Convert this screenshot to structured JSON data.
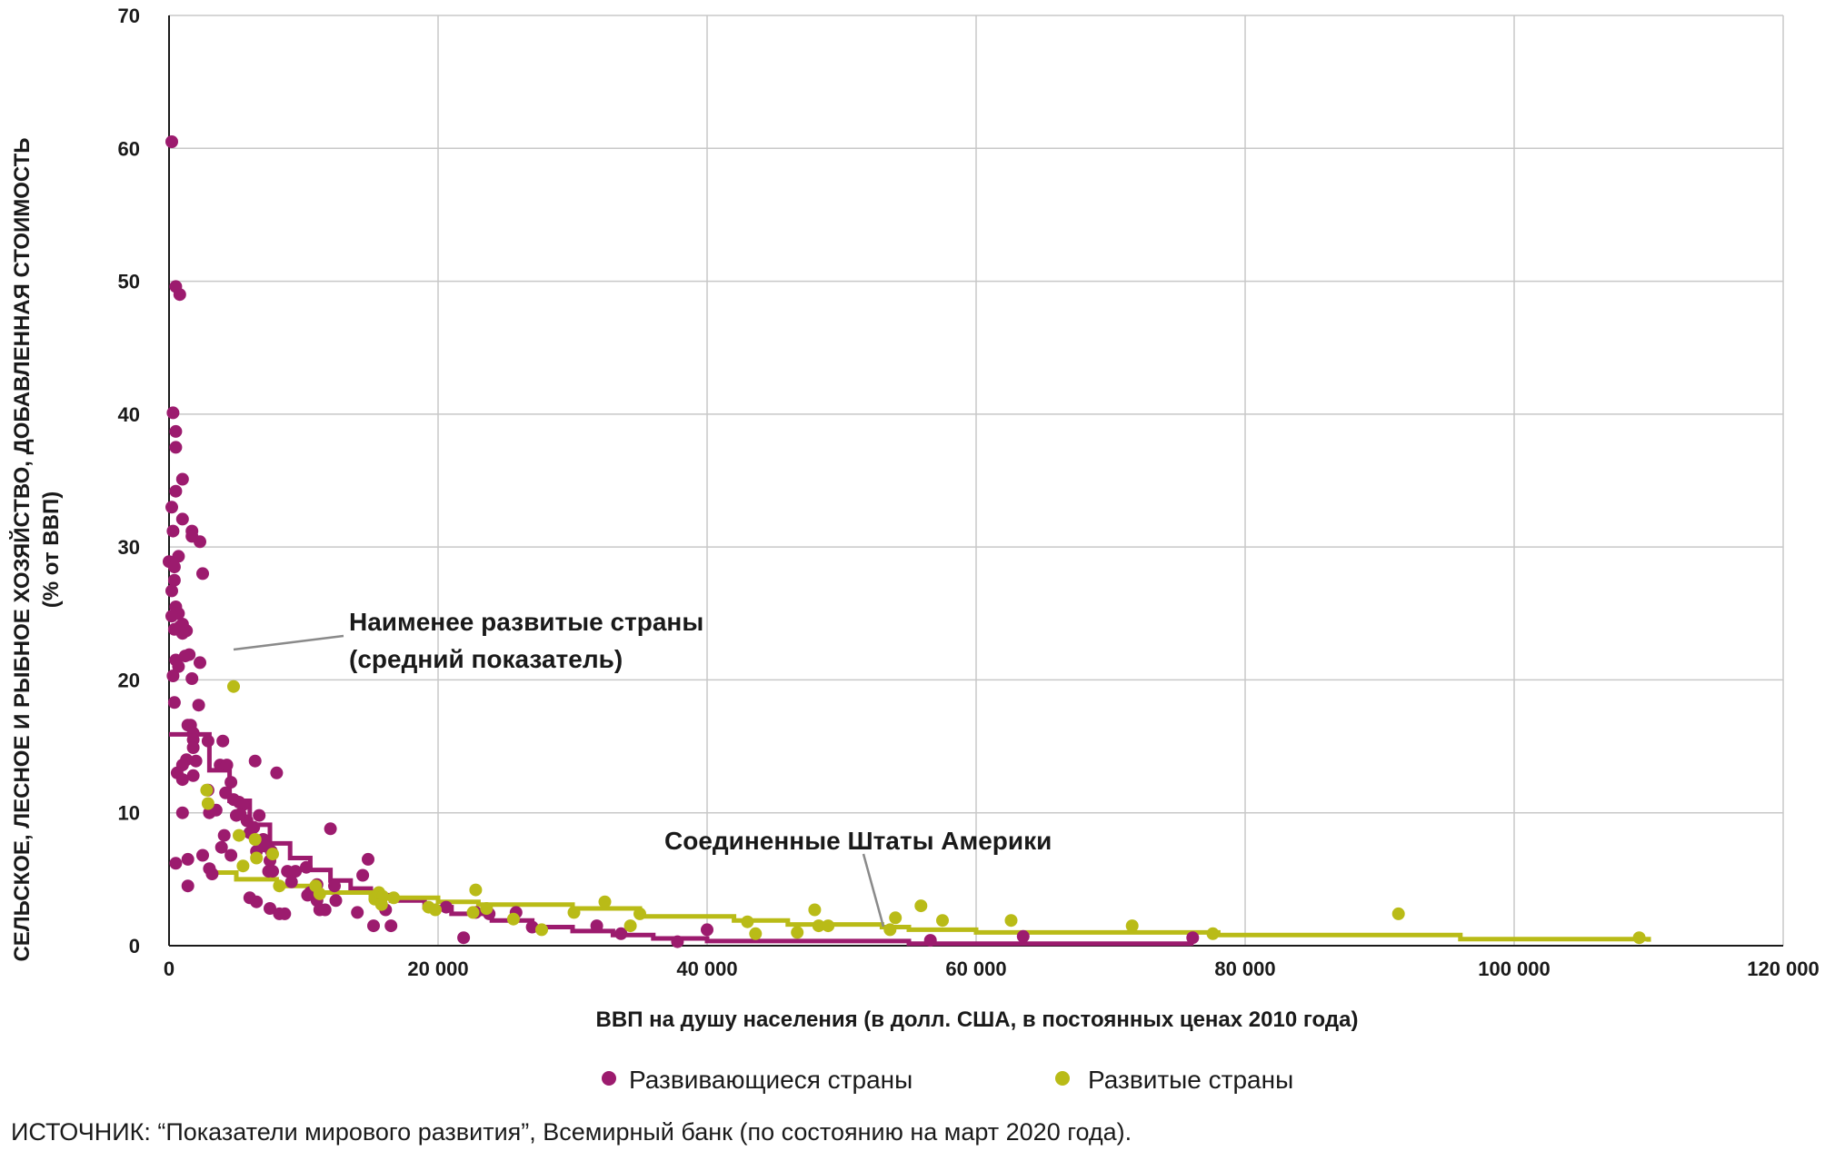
{
  "chart_data": {
    "type": "scatter",
    "xlabel": "ВВП на душу населения (в долл. США, в постоянных ценах 2010 года)",
    "ylabel_line1": "СЕЛЬСКОЕ, ЛЕСНОЕ И РЫБНОЕ ХОЗЯЙСТВО, ДОБАВЛЕННАЯ СТОИМОСТЬ",
    "ylabel_line2": "(% от ВВП)",
    "xlim": [
      0,
      120000
    ],
    "ylim": [
      0,
      70
    ],
    "x_ticks": [
      0,
      20000,
      40000,
      60000,
      80000,
      100000,
      120000
    ],
    "x_tick_labels": [
      "0",
      "20 000",
      "40 000",
      "60 000",
      "80 000",
      "100 000",
      "120 000"
    ],
    "y_ticks": [
      0,
      10,
      20,
      30,
      40,
      50,
      60,
      70
    ],
    "y_tick_labels": [
      "0",
      "10",
      "20",
      "30",
      "40",
      "50",
      "60",
      "70"
    ],
    "grid": true,
    "legend_position": "bottom",
    "series": [
      {
        "name": "Развивающиеся страны",
        "color": "#9c1b6e",
        "points": [
          [
            200,
            60.5
          ],
          [
            500,
            49.6
          ],
          [
            800,
            49.0
          ],
          [
            300,
            40.1
          ],
          [
            500,
            38.7
          ],
          [
            500,
            37.5
          ],
          [
            1000,
            35.1
          ],
          [
            500,
            34.2
          ],
          [
            200,
            33.0
          ],
          [
            1000,
            32.1
          ],
          [
            300,
            31.2
          ],
          [
            1700,
            31.2
          ],
          [
            2300,
            30.4
          ],
          [
            1700,
            30.8
          ],
          [
            700,
            29.3
          ],
          [
            0,
            28.9
          ],
          [
            400,
            28.5
          ],
          [
            2500,
            28.0
          ],
          [
            400,
            27.5
          ],
          [
            200,
            26.7
          ],
          [
            500,
            25.5
          ],
          [
            700,
            25.0
          ],
          [
            1000,
            24.2
          ],
          [
            200,
            24.8
          ],
          [
            800,
            24.0
          ],
          [
            1300,
            23.7
          ],
          [
            1000,
            23.5
          ],
          [
            400,
            23.8
          ],
          [
            1500,
            21.9
          ],
          [
            500,
            21.5
          ],
          [
            1200,
            21.8
          ],
          [
            2300,
            21.3
          ],
          [
            700,
            21.0
          ],
          [
            300,
            20.3
          ],
          [
            1700,
            20.1
          ],
          [
            400,
            18.3
          ],
          [
            2200,
            18.1
          ],
          [
            1600,
            16.6
          ],
          [
            1400,
            16.6
          ],
          [
            1800,
            16.0
          ],
          [
            1800,
            15.5
          ],
          [
            2900,
            15.4
          ],
          [
            4000,
            15.4
          ],
          [
            1800,
            14.9
          ],
          [
            1300,
            14.0
          ],
          [
            2000,
            13.9
          ],
          [
            1000,
            13.6
          ],
          [
            3800,
            13.6
          ],
          [
            4300,
            13.6
          ],
          [
            6400,
            13.9
          ],
          [
            8000,
            13.0
          ],
          [
            600,
            13.0
          ],
          [
            1800,
            12.8
          ],
          [
            4600,
            12.3
          ],
          [
            1000,
            12.5
          ],
          [
            2900,
            11.7
          ],
          [
            3000,
            10.0
          ],
          [
            3500,
            10.2
          ],
          [
            4200,
            11.5
          ],
          [
            4800,
            11.0
          ],
          [
            5200,
            10.8
          ],
          [
            5500,
            10.6
          ],
          [
            5000,
            9.8
          ],
          [
            6700,
            9.8
          ],
          [
            1000,
            10.0
          ],
          [
            12000,
            8.8
          ],
          [
            6000,
            8.5
          ],
          [
            7000,
            8.0
          ],
          [
            4100,
            8.3
          ],
          [
            3900,
            7.4
          ],
          [
            4600,
            6.8
          ],
          [
            6500,
            7.1
          ],
          [
            7600,
            7.1
          ],
          [
            5300,
            9.9
          ],
          [
            5800,
            9.4
          ],
          [
            6300,
            8.9
          ],
          [
            7100,
            7.5
          ],
          [
            7500,
            6.4
          ],
          [
            2500,
            6.8
          ],
          [
            1400,
            6.5
          ],
          [
            500,
            6.2
          ],
          [
            3000,
            5.8
          ],
          [
            3200,
            5.4
          ],
          [
            7400,
            5.6
          ],
          [
            7700,
            5.6
          ],
          [
            8800,
            5.6
          ],
          [
            9400,
            5.6
          ],
          [
            9100,
            4.8
          ],
          [
            10200,
            5.9
          ],
          [
            14800,
            6.5
          ],
          [
            14400,
            5.3
          ],
          [
            11000,
            4.6
          ],
          [
            12300,
            4.5
          ],
          [
            10500,
            4.0
          ],
          [
            10300,
            3.8
          ],
          [
            11000,
            3.4
          ],
          [
            12400,
            3.4
          ],
          [
            6000,
            3.6
          ],
          [
            6500,
            3.3
          ],
          [
            7500,
            2.8
          ],
          [
            8200,
            2.4
          ],
          [
            8600,
            2.4
          ],
          [
            11200,
            2.7
          ],
          [
            11600,
            2.7
          ],
          [
            14000,
            2.5
          ],
          [
            15200,
            1.5
          ],
          [
            16100,
            2.7
          ],
          [
            16500,
            1.5
          ],
          [
            20600,
            2.9
          ],
          [
            21900,
            0.6
          ],
          [
            22800,
            2.5
          ],
          [
            23800,
            2.4
          ],
          [
            25800,
            2.5
          ],
          [
            27000,
            1.4
          ],
          [
            31800,
            1.5
          ],
          [
            33600,
            0.9
          ],
          [
            37800,
            0.3
          ],
          [
            40000,
            1.2
          ],
          [
            56600,
            0.4
          ],
          [
            63500,
            0.7
          ],
          [
            76100,
            0.6
          ],
          [
            1400,
            4.5
          ]
        ],
        "average_line": [
          [
            0,
            15.9
          ],
          [
            3000,
            13.2
          ],
          [
            4500,
            10.9
          ],
          [
            6000,
            9.1
          ],
          [
            7500,
            7.7
          ],
          [
            9000,
            6.6
          ],
          [
            10500,
            5.7
          ],
          [
            12000,
            4.9
          ],
          [
            13500,
            4.3
          ],
          [
            15000,
            3.8
          ],
          [
            16500,
            3.4
          ],
          [
            19000,
            2.9
          ],
          [
            21000,
            2.4
          ],
          [
            24000,
            1.9
          ],
          [
            27000,
            1.4
          ],
          [
            30000,
            1.1
          ],
          [
            33000,
            0.8
          ],
          [
            36000,
            0.55
          ],
          [
            40000,
            0.35
          ],
          [
            55000,
            0.15
          ],
          [
            76000,
            0.0
          ]
        ]
      },
      {
        "name": "Развитые страны",
        "color": "#b9bb17",
        "points": [
          [
            4800,
            19.5
          ],
          [
            2800,
            11.7
          ],
          [
            2900,
            10.7
          ],
          [
            5200,
            8.3
          ],
          [
            6400,
            8.0
          ],
          [
            5500,
            6.0
          ],
          [
            6500,
            6.6
          ],
          [
            7700,
            6.9
          ],
          [
            8200,
            4.5
          ],
          [
            10900,
            4.5
          ],
          [
            11200,
            3.9
          ],
          [
            15300,
            3.5
          ],
          [
            15600,
            4.0
          ],
          [
            15900,
            3.7
          ],
          [
            15800,
            3.1
          ],
          [
            16700,
            3.6
          ],
          [
            19300,
            2.9
          ],
          [
            19800,
            2.7
          ],
          [
            22800,
            4.2
          ],
          [
            22600,
            2.5
          ],
          [
            23600,
            2.8
          ],
          [
            25600,
            2.0
          ],
          [
            27700,
            1.2
          ],
          [
            30100,
            2.5
          ],
          [
            32400,
            3.3
          ],
          [
            34300,
            1.5
          ],
          [
            35000,
            2.4
          ],
          [
            43000,
            1.8
          ],
          [
            43600,
            0.9
          ],
          [
            46700,
            1.0
          ],
          [
            48000,
            2.7
          ],
          [
            48300,
            1.5
          ],
          [
            49000,
            1.5
          ],
          [
            53600,
            1.2
          ],
          [
            54000,
            2.1
          ],
          [
            55900,
            3.0
          ],
          [
            57500,
            1.9
          ],
          [
            62600,
            1.9
          ],
          [
            71600,
            1.5
          ],
          [
            77600,
            0.9
          ],
          [
            91400,
            2.4
          ],
          [
            109300,
            0.6
          ]
        ],
        "average_line": [
          [
            3000,
            5.5
          ],
          [
            5000,
            5.0
          ],
          [
            8000,
            4.5
          ],
          [
            11000,
            4.0
          ],
          [
            15000,
            3.6
          ],
          [
            20000,
            3.3
          ],
          [
            23000,
            3.1
          ],
          [
            30000,
            2.8
          ],
          [
            35000,
            2.2
          ],
          [
            42000,
            1.9
          ],
          [
            46000,
            1.6
          ],
          [
            53000,
            1.4
          ],
          [
            55000,
            1.2
          ],
          [
            60000,
            1.0
          ],
          [
            78000,
            0.8
          ],
          [
            96000,
            0.5
          ],
          [
            110000,
            0.3
          ]
        ]
      }
    ],
    "annotations": {
      "least_developed_line1": "Наименее развитые страны",
      "least_developed_line2": "(средний показатель)",
      "usa": "Соединенные Штаты Америки"
    }
  },
  "source": "ИСТОЧНИК: “Показатели мирового развития”, Всемирный банк (по состоянию на март 2020 года)."
}
